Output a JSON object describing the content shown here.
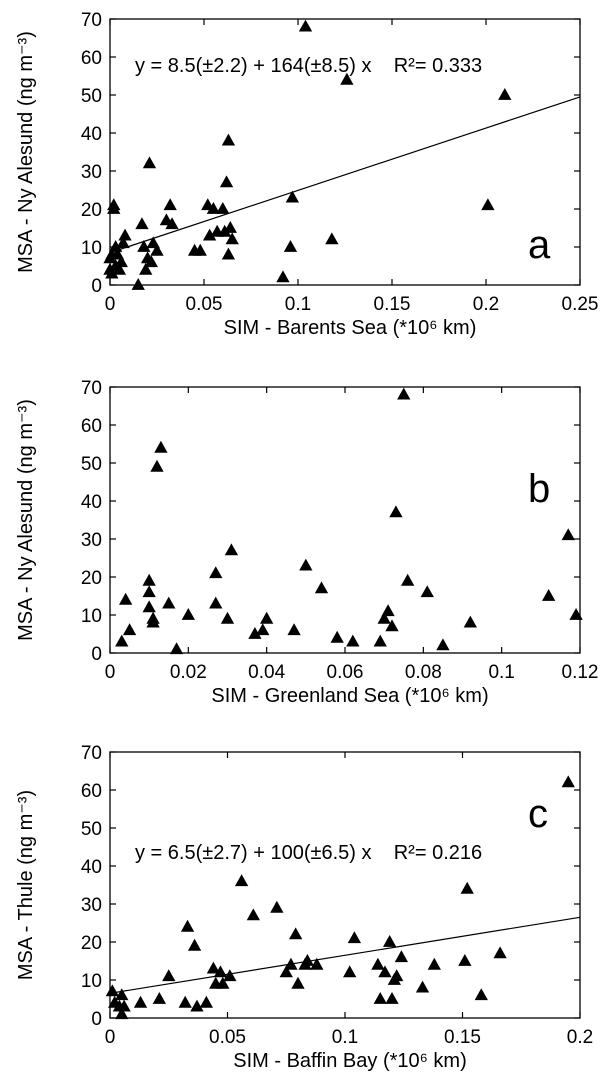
{
  "chart_data": [
    {
      "type": "scatter",
      "panel_letter": "a",
      "xlabel": "SIM - Barents Sea (*10⁶ km)",
      "ylabel": "MSA - Ny Alesund (ng m⁻³)",
      "xlim": [
        0,
        0.25
      ],
      "ylim": [
        0,
        70
      ],
      "xticks": [
        "0",
        "0.05",
        "0.1",
        "0.15",
        "0.2",
        "0.25"
      ],
      "yticks": [
        "0",
        "10",
        "20",
        "30",
        "40",
        "50",
        "60",
        "70"
      ],
      "equation": "y = 8.5(±2.2) + 164(±8.5) x    R²= 0.333",
      "fit": {
        "intercept": 8.5,
        "slope": 164
      },
      "x": [
        0.0,
        0.0,
        0.001,
        0.001,
        0.002,
        0.002,
        0.003,
        0.003,
        0.004,
        0.005,
        0.006,
        0.007,
        0.008,
        0.015,
        0.017,
        0.018,
        0.019,
        0.02,
        0.021,
        0.022,
        0.023,
        0.025,
        0.03,
        0.032,
        0.033,
        0.045,
        0.048,
        0.052,
        0.053,
        0.055,
        0.057,
        0.06,
        0.061,
        0.062,
        0.063,
        0.063,
        0.064,
        0.065,
        0.092,
        0.096,
        0.097,
        0.104,
        0.118,
        0.126,
        0.201,
        0.21
      ],
      "y": [
        7,
        4,
        8,
        3,
        21,
        20,
        5,
        10,
        8,
        4,
        6,
        11,
        13,
        0,
        16,
        10,
        4,
        7,
        32,
        6,
        11,
        9,
        17,
        21,
        16,
        9,
        9,
        21,
        13,
        20,
        14,
        20,
        14,
        27,
        8,
        38,
        15,
        12,
        2,
        10,
        23,
        68,
        12,
        54,
        21,
        50
      ]
    },
    {
      "type": "scatter",
      "panel_letter": "b",
      "xlabel": "SIM - Greenland Sea (*10⁶ km)",
      "ylabel": "MSA - Ny Alesund (ng m⁻³)",
      "xlim": [
        0,
        0.12
      ],
      "ylim": [
        0,
        70
      ],
      "xticks": [
        "0",
        "0.02",
        "0.04",
        "0.06",
        "0.08",
        "0.1",
        "0.12"
      ],
      "yticks": [
        "0",
        "10",
        "20",
        "30",
        "40",
        "50",
        "60",
        "70"
      ],
      "x": [
        0.003,
        0.004,
        0.005,
        0.01,
        0.01,
        0.01,
        0.011,
        0.011,
        0.012,
        0.013,
        0.015,
        0.017,
        0.02,
        0.027,
        0.027,
        0.03,
        0.031,
        0.037,
        0.039,
        0.04,
        0.047,
        0.05,
        0.054,
        0.058,
        0.062,
        0.069,
        0.07,
        0.071,
        0.072,
        0.073,
        0.075,
        0.076,
        0.081,
        0.085,
        0.092,
        0.112,
        0.117,
        0.119
      ],
      "y": [
        3,
        14,
        6,
        19,
        16,
        12,
        8,
        9,
        49,
        54,
        13,
        1,
        10,
        21,
        13,
        9,
        27,
        5,
        6,
        9,
        6,
        23,
        17,
        4,
        3,
        3,
        9,
        11,
        7,
        37,
        68,
        19,
        16,
        2,
        8,
        15,
        31,
        10
      ]
    },
    {
      "type": "scatter",
      "panel_letter": "c",
      "xlabel": "SIM - Baffin Bay (*10⁶ km)",
      "ylabel": "MSA - Thule (ng m⁻³)",
      "xlim": [
        0,
        0.2
      ],
      "ylim": [
        0,
        70
      ],
      "xticks": [
        "0",
        "0.05",
        "0.1",
        "0.15",
        "0.2"
      ],
      "yticks": [
        "0",
        "10",
        "20",
        "30",
        "40",
        "50",
        "60",
        "70"
      ],
      "equation": "y = 6.5(±2.7) + 100(±6.5) x    R²= 0.216",
      "fit": {
        "intercept": 6.5,
        "slope": 100
      },
      "x": [
        0.001,
        0.002,
        0.004,
        0.005,
        0.005,
        0.006,
        0.013,
        0.021,
        0.025,
        0.032,
        0.033,
        0.036,
        0.037,
        0.041,
        0.044,
        0.045,
        0.047,
        0.048,
        0.051,
        0.056,
        0.061,
        0.071,
        0.075,
        0.077,
        0.079,
        0.08,
        0.083,
        0.084,
        0.088,
        0.102,
        0.104,
        0.114,
        0.115,
        0.117,
        0.119,
        0.12,
        0.121,
        0.122,
        0.124,
        0.133,
        0.138,
        0.151,
        0.152,
        0.158,
        0.166,
        0.195
      ],
      "y": [
        7,
        4,
        3,
        6,
        1,
        3,
        4,
        5,
        11,
        4,
        24,
        19,
        3,
        4,
        13,
        9,
        12,
        9,
        11,
        36,
        27,
        29,
        12,
        14,
        22,
        9,
        14,
        15,
        14,
        12,
        21,
        14,
        5,
        12,
        20,
        5,
        10,
        11,
        16,
        8,
        14,
        15,
        34,
        6,
        17,
        62
      ]
    }
  ]
}
